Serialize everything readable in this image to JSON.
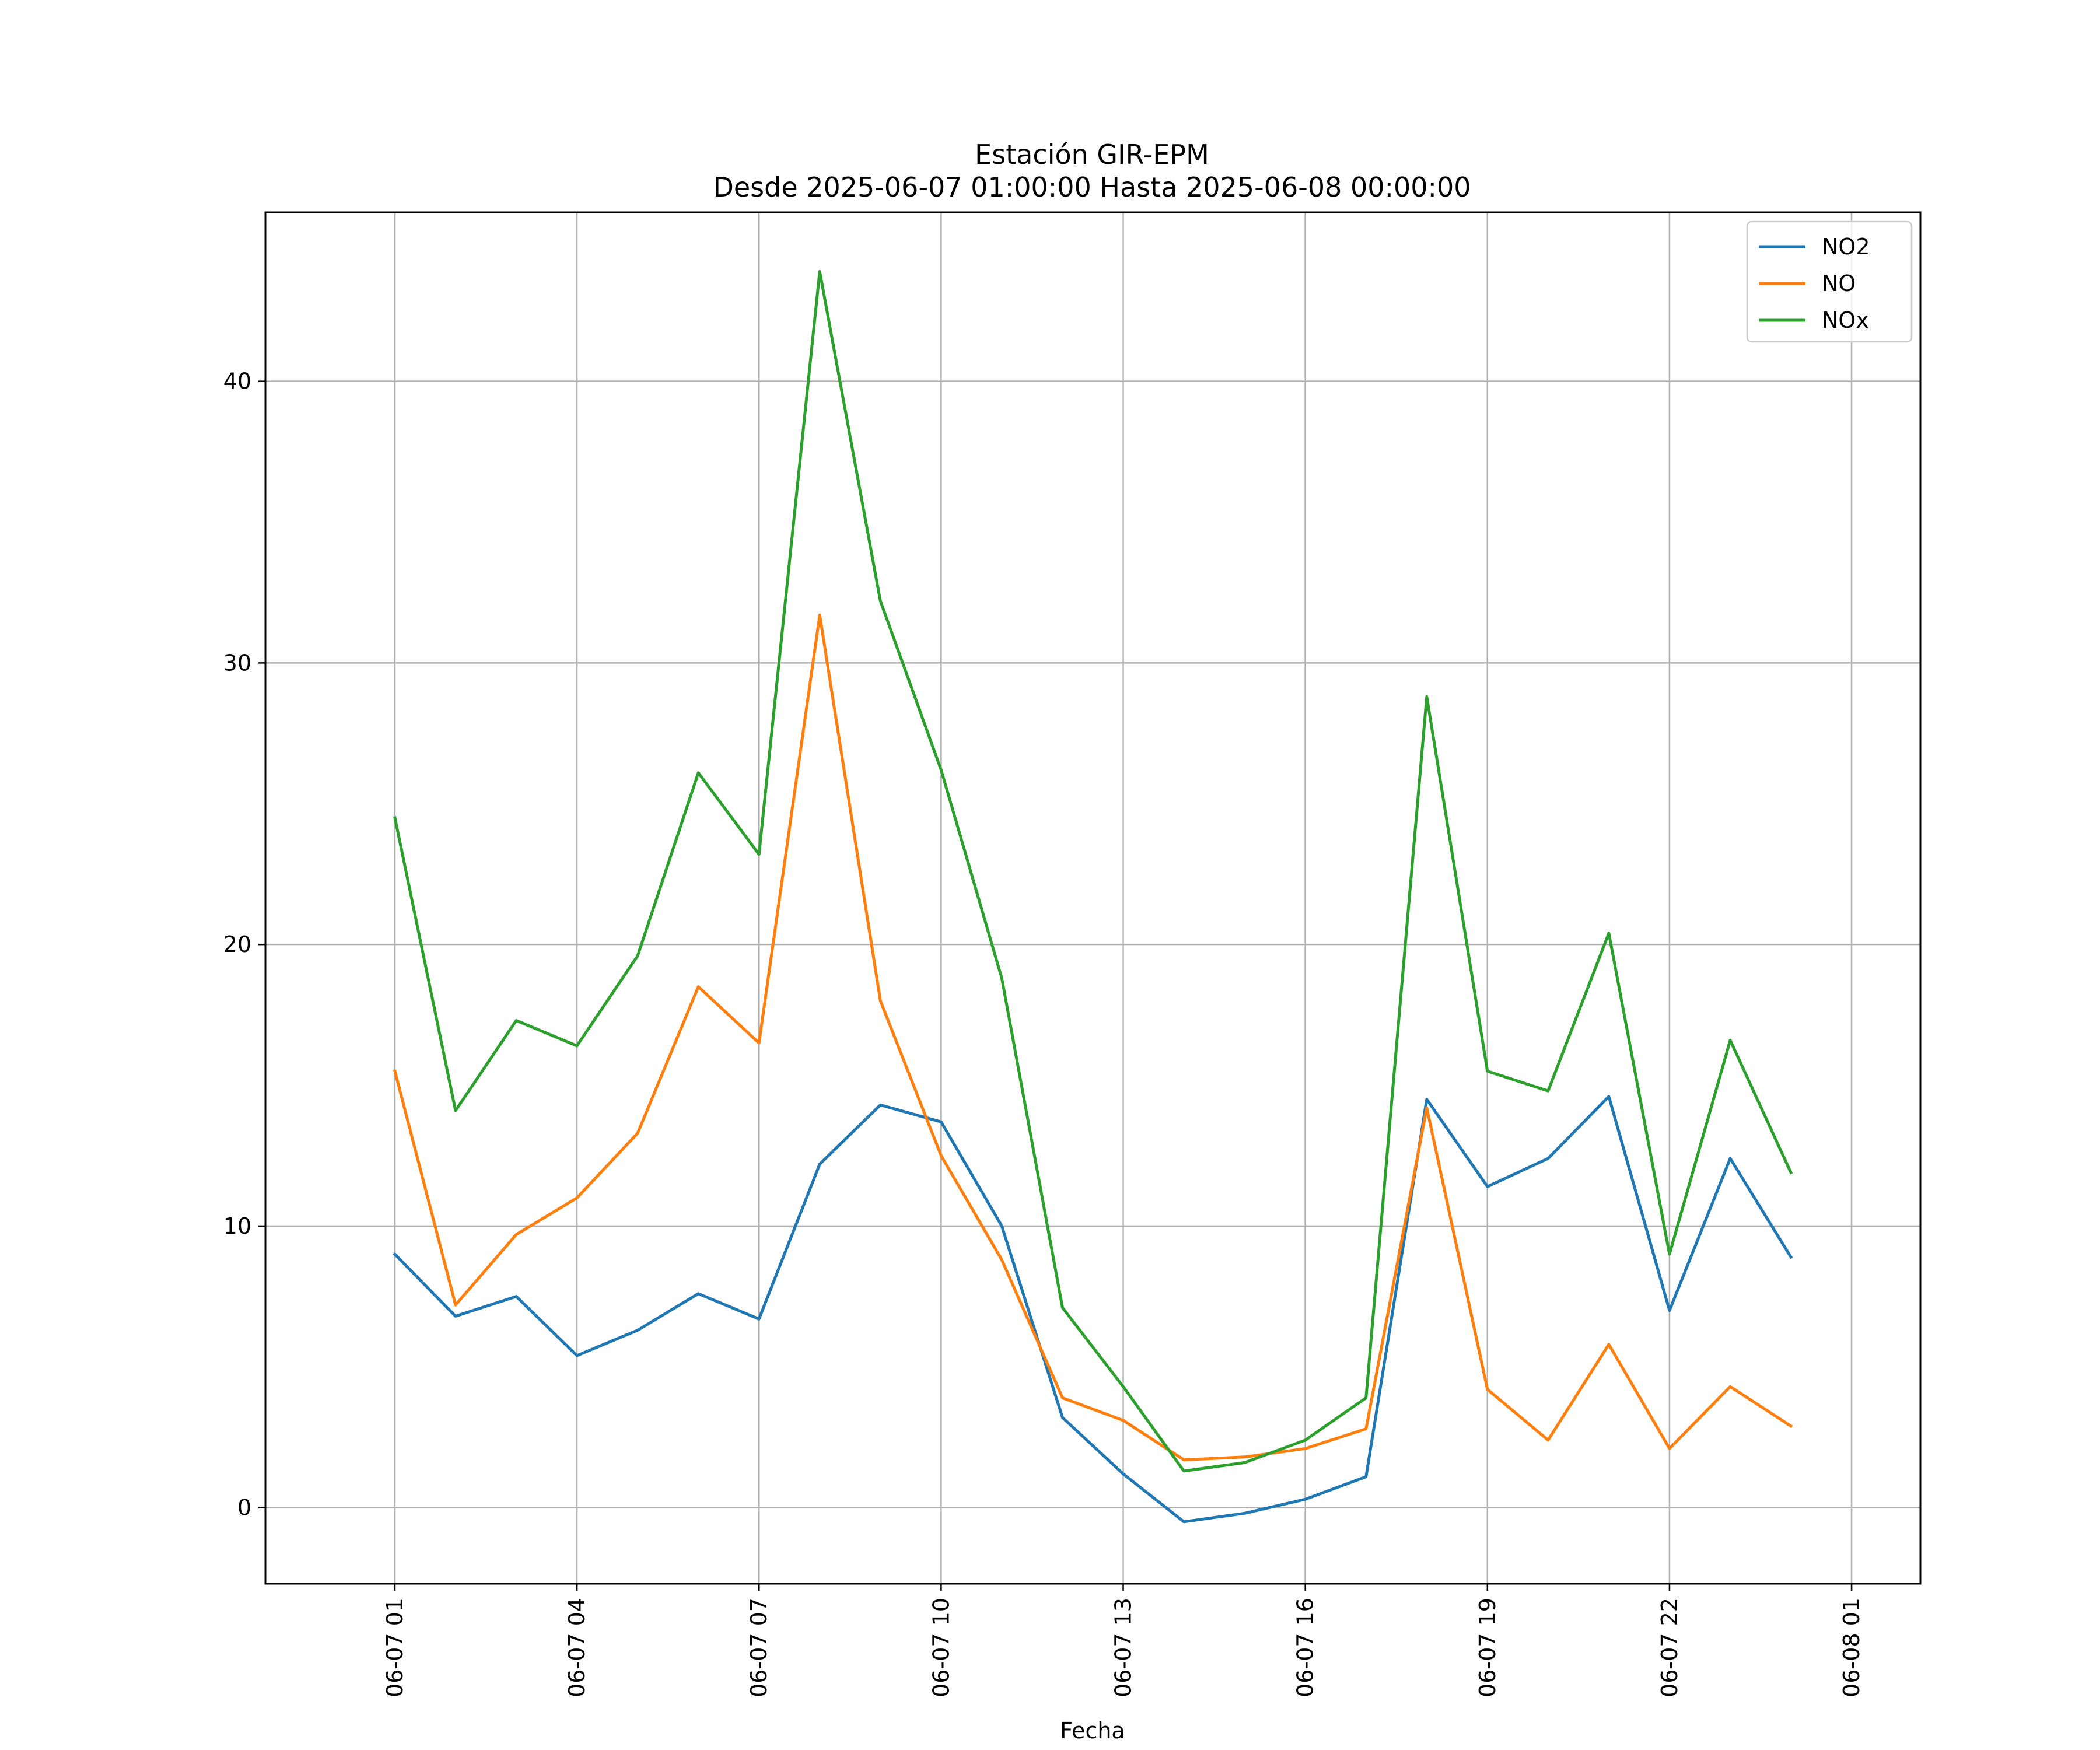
{
  "chart_data": {
    "type": "line",
    "title": "Estación GIR-EPM",
    "subtitle": "Desde 2025-06-07 01:00:00 Hasta 2025-06-08 00:00:00",
    "xlabel": "Fecha",
    "ylabel": "",
    "x": [
      "2025-06-07 01:00",
      "2025-06-07 02:00",
      "2025-06-07 03:00",
      "2025-06-07 04:00",
      "2025-06-07 05:00",
      "2025-06-07 06:00",
      "2025-06-07 07:00",
      "2025-06-07 08:00",
      "2025-06-07 09:00",
      "2025-06-07 10:00",
      "2025-06-07 11:00",
      "2025-06-07 12:00",
      "2025-06-07 13:00",
      "2025-06-07 14:00",
      "2025-06-07 15:00",
      "2025-06-07 16:00",
      "2025-06-07 17:00",
      "2025-06-07 18:00",
      "2025-06-07 19:00",
      "2025-06-07 20:00",
      "2025-06-07 21:00",
      "2025-06-07 22:00",
      "2025-06-07 23:00",
      "2025-06-08 00:00"
    ],
    "series": [
      {
        "name": "NO2",
        "color": "#1f77b4",
        "values": [
          9.0,
          6.8,
          7.5,
          5.4,
          6.3,
          7.6,
          6.7,
          12.2,
          14.3,
          13.7,
          10.0,
          3.2,
          1.2,
          -0.5,
          -0.2,
          0.3,
          1.1,
          14.5,
          11.4,
          12.4,
          14.6,
          7.0,
          12.4,
          8.9
        ]
      },
      {
        "name": "NO",
        "color": "#ff7f0e",
        "values": [
          15.5,
          7.2,
          9.7,
          11.0,
          13.3,
          18.5,
          16.5,
          31.7,
          18.0,
          12.5,
          8.8,
          3.9,
          3.1,
          1.7,
          1.8,
          2.1,
          2.8,
          14.2,
          4.2,
          2.4,
          5.8,
          2.1,
          4.3,
          2.9
        ]
      },
      {
        "name": "NOx",
        "color": "#2ca02c",
        "values": [
          24.5,
          14.1,
          17.3,
          16.4,
          19.6,
          26.1,
          23.2,
          43.9,
          32.2,
          26.2,
          18.8,
          7.1,
          4.3,
          1.3,
          1.6,
          2.4,
          3.9,
          28.8,
          15.5,
          14.8,
          20.4,
          9.0,
          16.6,
          11.9
        ]
      }
    ],
    "x_ticks": [
      "06-07 01",
      "06-07 04",
      "06-07 07",
      "06-07 10",
      "06-07 13",
      "06-07 16",
      "06-07 19",
      "06-07 22",
      "06-08 01"
    ],
    "y_ticks": [
      0,
      10,
      20,
      30,
      40
    ],
    "ylim": [
      -2.7,
      46.0
    ],
    "xlim": [
      "2025-06-06 22:52",
      "2025-06-08 02:08"
    ],
    "grid": true,
    "legend_position": "top-right"
  }
}
